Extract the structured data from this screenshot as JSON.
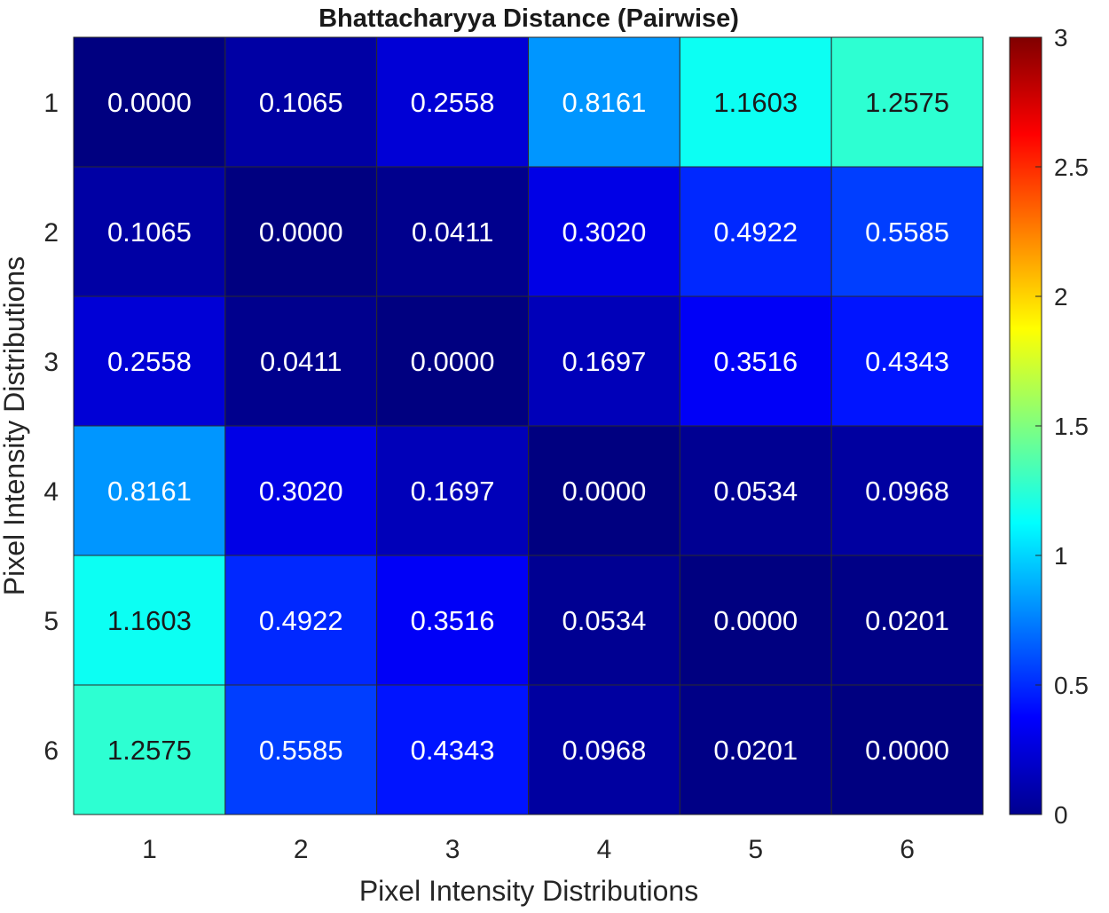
{
  "chart_data": {
    "type": "heatmap",
    "title": "Bhattacharyya Distance (Pairwise)",
    "xlabel": "Pixel Intensity Distributions",
    "ylabel": "Pixel Intensity Distributions",
    "x_categories": [
      "1",
      "2",
      "3",
      "4",
      "5",
      "6"
    ],
    "y_categories": [
      "1",
      "2",
      "3",
      "4",
      "5",
      "6"
    ],
    "values": [
      [
        0.0,
        0.1065,
        0.2558,
        0.8161,
        1.1603,
        1.2575
      ],
      [
        0.1065,
        0.0,
        0.0411,
        0.302,
        0.4922,
        0.5585
      ],
      [
        0.2558,
        0.0411,
        0.0,
        0.1697,
        0.3516,
        0.4343
      ],
      [
        0.8161,
        0.302,
        0.1697,
        0.0,
        0.0534,
        0.0968
      ],
      [
        1.1603,
        0.4922,
        0.3516,
        0.0534,
        0.0,
        0.0201
      ],
      [
        1.2575,
        0.5585,
        0.4343,
        0.0968,
        0.0201,
        0.0
      ]
    ],
    "cell_labels": [
      [
        "0.0000",
        "0.1065",
        "0.2558",
        "0.8161",
        "1.1603",
        "1.2575"
      ],
      [
        "0.1065",
        "0.0000",
        "0.0411",
        "0.3020",
        "0.4922",
        "0.5585"
      ],
      [
        "0.2558",
        "0.0411",
        "0.0000",
        "0.1697",
        "0.3516",
        "0.4343"
      ],
      [
        "0.8161",
        "0.3020",
        "0.1697",
        "0.0000",
        "0.0534",
        "0.0968"
      ],
      [
        "1.1603",
        "0.4922",
        "0.3516",
        "0.0534",
        "0.0000",
        "0.0201"
      ],
      [
        "1.2575",
        "0.5585",
        "0.4343",
        "0.0968",
        "0.0201",
        "0.0000"
      ]
    ],
    "colormap": "jet",
    "color_range": [
      0,
      3
    ],
    "colorbar_ticks": [
      "0",
      "0.5",
      "1",
      "1.5",
      "2",
      "2.5",
      "3"
    ],
    "colorbar_tick_values": [
      0,
      0.5,
      1,
      1.5,
      2,
      2.5,
      3
    ],
    "colors": {
      "gridline": "#2b2b2b",
      "frame": "#262626",
      "text": "#262626",
      "label_light": "#ffffff",
      "label_dark": "#1a1a1a"
    }
  }
}
